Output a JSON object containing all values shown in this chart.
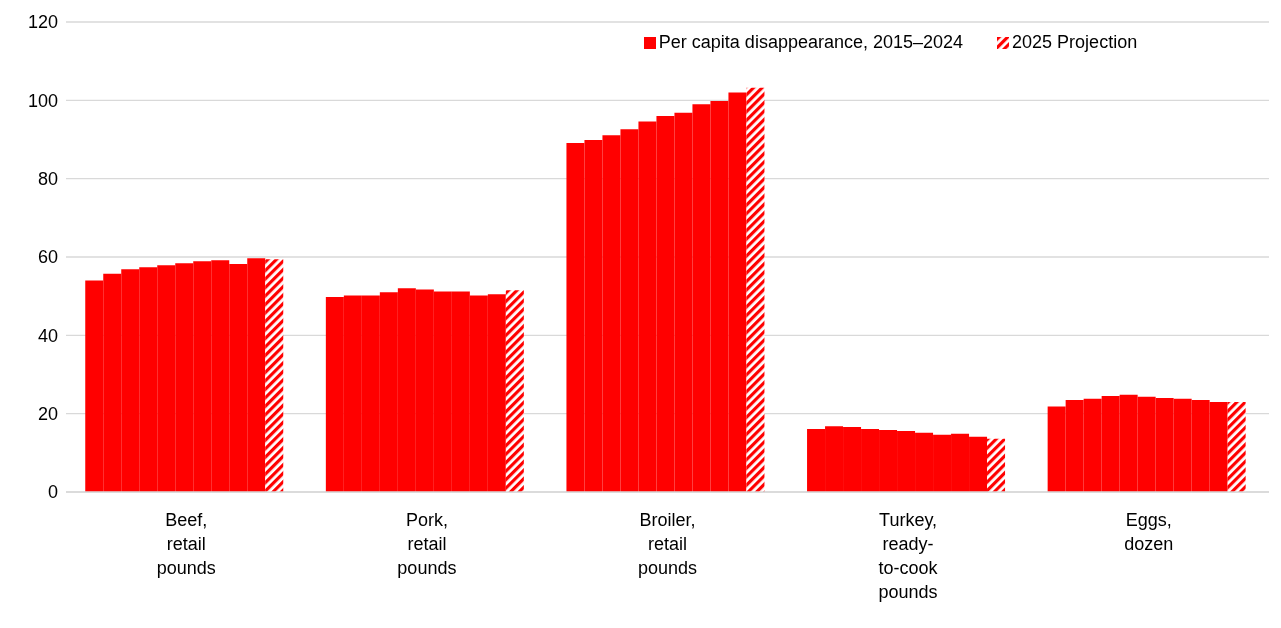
{
  "chart_data": {
    "type": "bar",
    "categories": [
      "Beef,\nretail\npounds",
      "Pork,\nretail\npounds",
      "Broiler,\nretail\npounds",
      "Turkey,\nready-\nto-cook\npounds",
      "Eggs,\ndozen"
    ],
    "series": [
      {
        "name": "Per capita disappearance, 2015–2024",
        "color": "#ff0000",
        "values": [
          54.0,
          49.8,
          89.1,
          16.1,
          21.8
        ]
      },
      {
        "color": "#ff0000",
        "values": [
          55.7,
          50.2,
          89.9,
          16.8,
          23.5
        ]
      },
      {
        "color": "#ff0000",
        "values": [
          56.9,
          50.2,
          91.1,
          16.6,
          23.8
        ]
      },
      {
        "color": "#ff0000",
        "values": [
          57.4,
          51.0,
          92.6,
          16.1,
          24.5
        ]
      },
      {
        "color": "#ff0000",
        "values": [
          57.9,
          52.0,
          94.6,
          15.8,
          24.8
        ]
      },
      {
        "color": "#ff0000",
        "values": [
          58.4,
          51.7,
          96.0,
          15.6,
          24.3
        ]
      },
      {
        "color": "#ff0000",
        "values": [
          58.9,
          51.2,
          96.8,
          15.1,
          24.0
        ]
      },
      {
        "color": "#ff0000",
        "values": [
          59.2,
          51.2,
          99.0,
          14.6,
          23.8
        ]
      },
      {
        "color": "#ff0000",
        "values": [
          58.2,
          50.2,
          99.8,
          14.9,
          23.5
        ]
      },
      {
        "color": "#ff0000",
        "values": [
          59.7,
          50.5,
          102.0,
          14.1,
          23.0
        ]
      },
      {
        "name": "2025 Projection",
        "color": "#ff0000",
        "values": [
          59.4,
          51.5,
          103.2,
          13.6,
          23.0
        ]
      }
    ],
    "ylim": [
      0,
      120
    ],
    "yticks": [
      0,
      20,
      40,
      60,
      80,
      100,
      120
    ],
    "grid": "y",
    "legend": "top"
  }
}
